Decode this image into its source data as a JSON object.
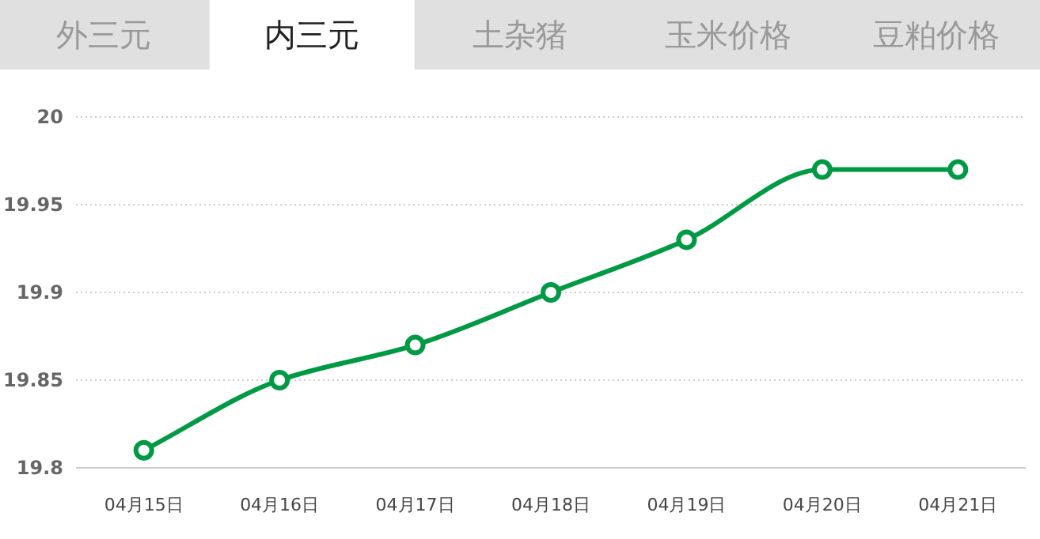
{
  "chart_data": {
    "type": "line",
    "title": "内三元",
    "annotations": [
      "外三元",
      "土杂猪",
      "玉米价格",
      "豆粕价格"
    ],
    "categories": [
      "04月15日",
      "04月16日",
      "04月17日",
      "04月18日",
      "04月19日",
      "04月20日",
      "04月21日"
    ],
    "series": [
      {
        "color": "#009944",
        "values": [
          19.81,
          19.85,
          19.87,
          19.9,
          19.93,
          19.97,
          19.97
        ]
      }
    ],
    "ylim": [
      19.8,
      20
    ],
    "yticks": [
      19.8,
      19.85,
      19.9,
      19.95,
      20
    ],
    "grid": "y",
    "marker": "circle",
    "line_style": "solid"
  }
}
